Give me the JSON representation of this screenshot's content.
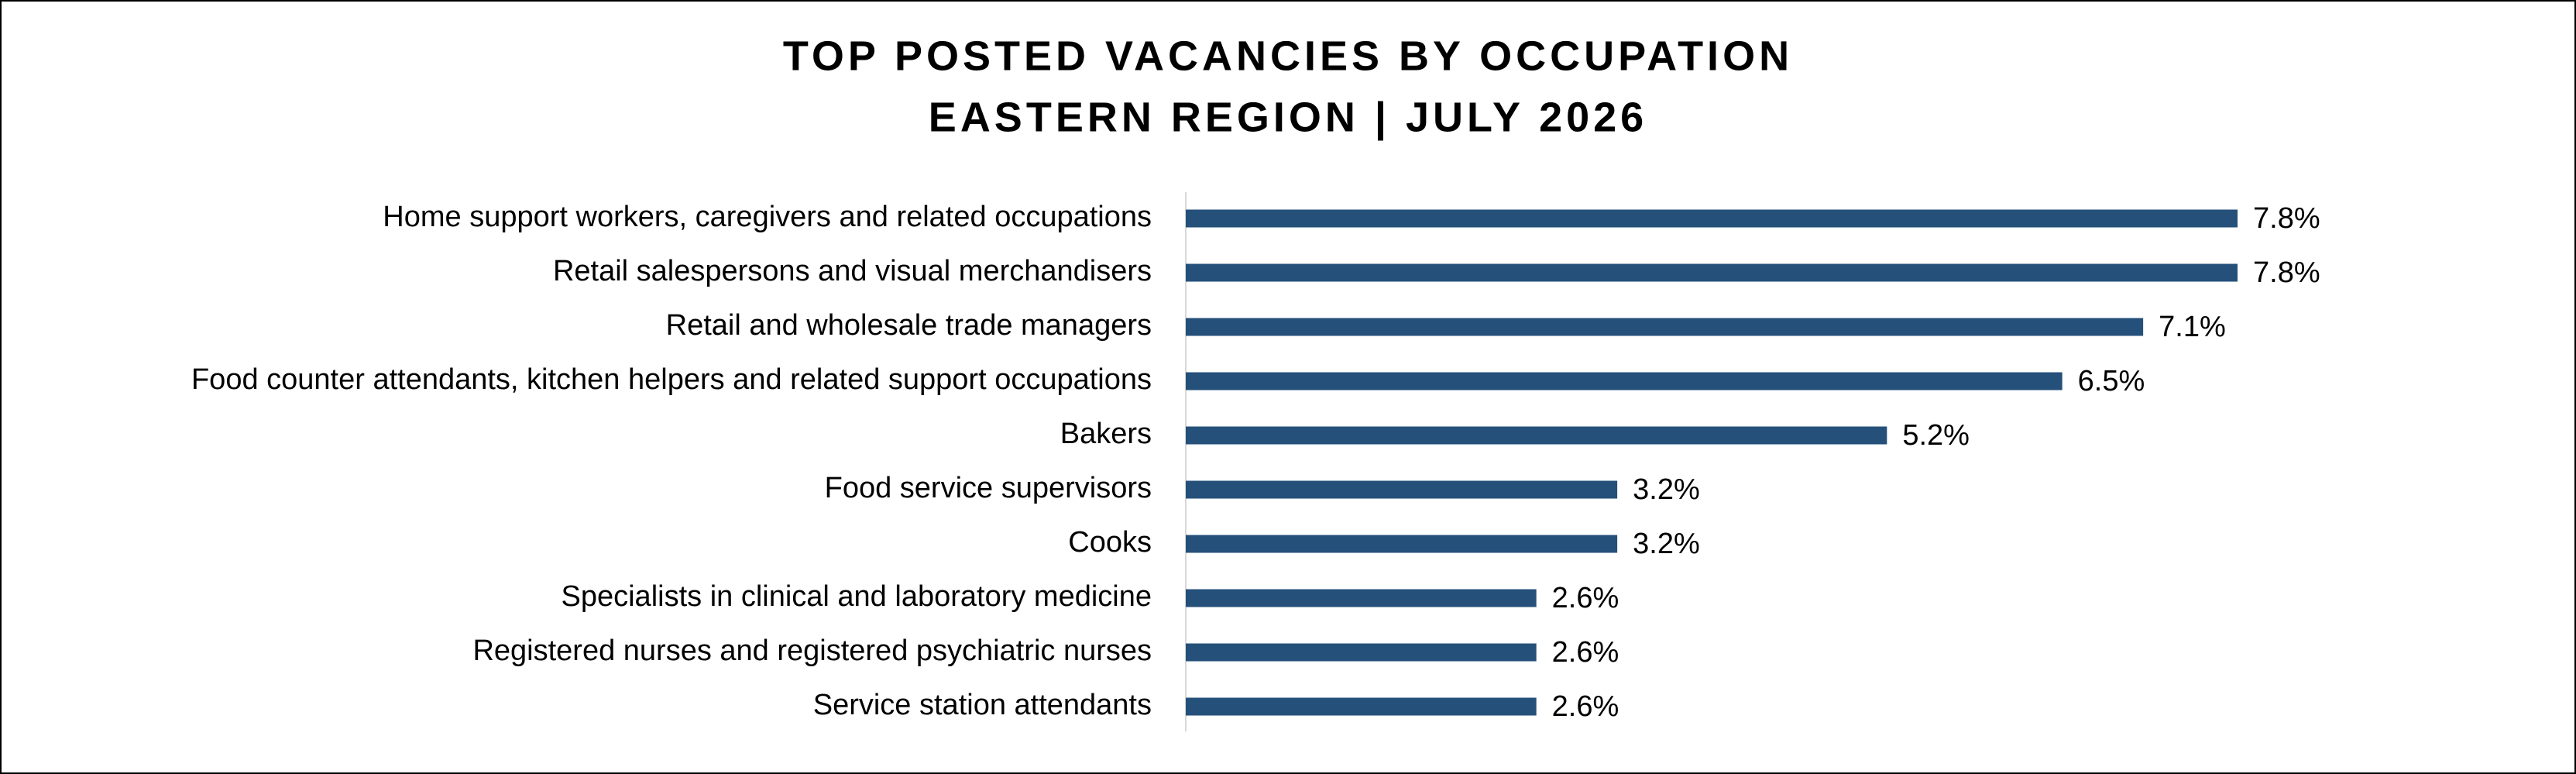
{
  "chart_data": {
    "type": "bar",
    "orientation": "horizontal",
    "title": "TOP POSTED VACANCIES BY OCCUPATION",
    "subtitle": "EASTERN REGION | JULY 2026",
    "categories": [
      "Home support workers, caregivers and related occupations",
      "Retail salespersons and visual merchandisers",
      "Retail and wholesale trade managers",
      "Food counter attendants, kitchen helpers and related support occupations",
      "Bakers",
      "Food service supervisors",
      "Cooks",
      "Specialists in clinical and laboratory medicine",
      "Registered nurses and registered psychiatric nurses",
      "Service station attendants"
    ],
    "values": [
      7.8,
      7.8,
      7.1,
      6.5,
      5.2,
      3.2,
      3.2,
      2.6,
      2.6,
      2.6
    ],
    "value_labels": [
      "7.8%",
      "7.8%",
      "7.1%",
      "6.5%",
      "5.2%",
      "3.2%",
      "3.2%",
      "2.6%",
      "2.6%",
      "2.6%"
    ],
    "color": "#24507a"
  }
}
